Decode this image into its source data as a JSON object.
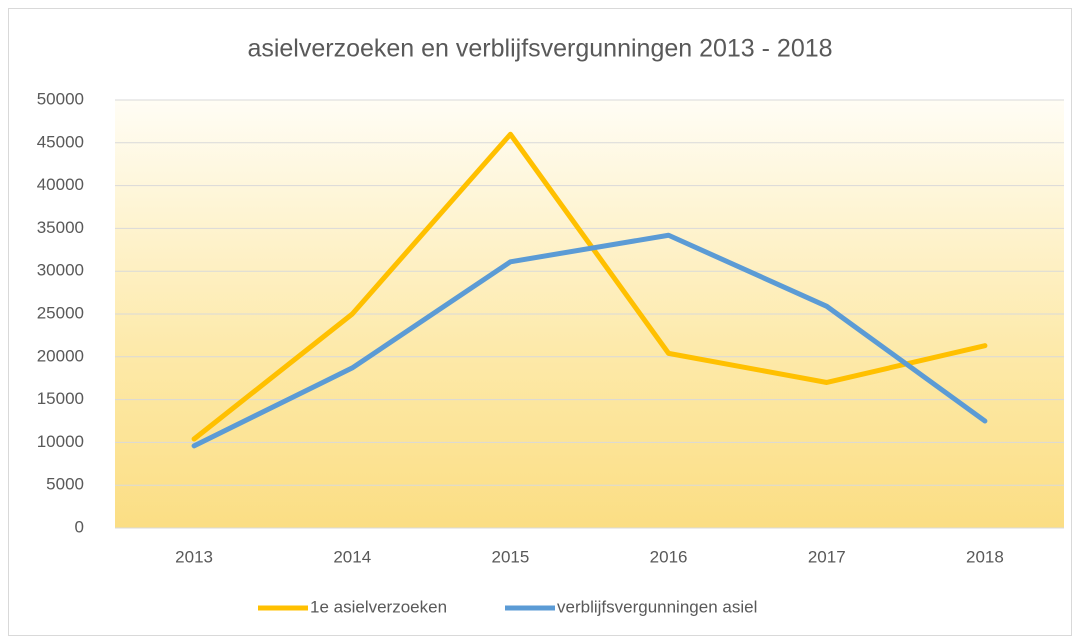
{
  "chart_data": {
    "type": "line",
    "title": "asielverzoeken en verblijfsvergunningen 2013 - 2018",
    "categories": [
      "2013",
      "2014",
      "2015",
      "2016",
      "2017",
      "2018"
    ],
    "series": [
      {
        "name": "1e asielverzoeken",
        "color": "#ffc000",
        "values": [
          10400,
          25000,
          46000,
          20400,
          17000,
          21300
        ]
      },
      {
        "name": "verblijfsvergunningen asiel",
        "color": "#5b9bd5",
        "values": [
          9600,
          18700,
          31100,
          34200,
          25900,
          12500
        ]
      }
    ],
    "ylim": [
      0,
      50000
    ],
    "yticks": [
      0,
      5000,
      10000,
      15000,
      20000,
      25000,
      30000,
      35000,
      40000,
      45000,
      50000
    ],
    "grid": true,
    "legend": "bottom"
  }
}
